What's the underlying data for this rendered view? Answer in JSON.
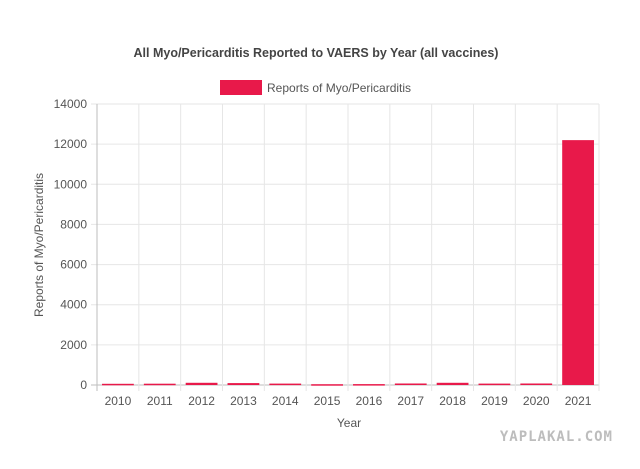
{
  "chart_data": {
    "type": "bar",
    "title": "All Myo/Pericarditis Reported to VAERS by Year (all vaccines)",
    "xlabel": "Year",
    "ylabel": "Reports of Myo/Pericarditis",
    "categories": [
      "2010",
      "2011",
      "2012",
      "2013",
      "2014",
      "2015",
      "2016",
      "2017",
      "2018",
      "2019",
      "2020",
      "2021"
    ],
    "series": [
      {
        "name": "Reports of Myo/Pericarditis",
        "color": "#e8194a",
        "values": [
          60,
          65,
          110,
          95,
          70,
          40,
          45,
          75,
          110,
          70,
          75,
          12200
        ]
      }
    ],
    "ylim": [
      0,
      14000
    ],
    "yticks": [
      0,
      2000,
      4000,
      6000,
      8000,
      10000,
      12000,
      14000
    ],
    "grid": true,
    "legend_position": "top-center"
  },
  "watermark": "YAPLAKAL.COM"
}
